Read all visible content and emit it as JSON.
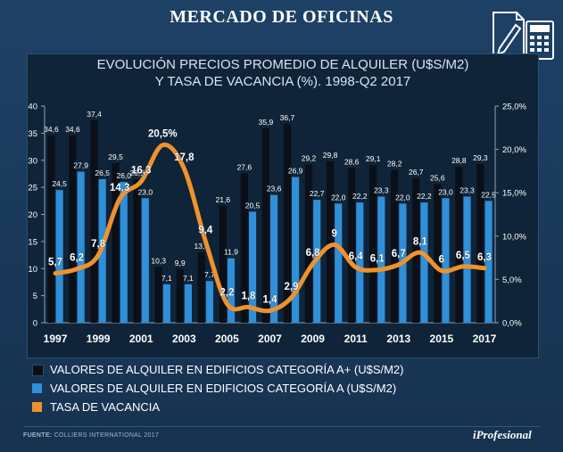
{
  "header": {
    "title": "MERCADO DE OFICINAS"
  },
  "chart_data": {
    "type": "bar",
    "title_line1": "EVOLUCIÓN PRECIOS PROMEDIO DE ALQUILER (U$S/M2)",
    "title_line2": "Y TASA DE VACANCIA (%). 1998-Q2 2017",
    "categories": [
      "1997",
      "1998",
      "1999",
      "2000",
      "2001",
      "2002",
      "2003",
      "2004",
      "2005",
      "2006",
      "2007",
      "2008",
      "2009",
      "2010",
      "2011",
      "2012",
      "2013",
      "2014",
      "2015",
      "2016",
      "2017"
    ],
    "x_tick_labels": [
      "1997",
      "1999",
      "2001",
      "2003",
      "2005",
      "2007",
      "2009",
      "2011",
      "2013",
      "2015",
      "2017"
    ],
    "y_left_ticks": [
      "0",
      "5",
      "10",
      "15",
      "20",
      "25",
      "30",
      "35",
      "40"
    ],
    "y_left_lim": [
      0,
      40
    ],
    "y_right_ticks": [
      "0,0%",
      "5,0%",
      "10,0%",
      "15,0%",
      "20,0%",
      "25,0%"
    ],
    "y_right_lim": [
      0,
      25
    ],
    "series": [
      {
        "name": "VALORES DE ALQUILER EN EDIFICIOS CATEGORÍA A+ (U$S/M2)",
        "axis": "left",
        "color": "#0a0f18",
        "values": [
          34.6,
          34.6,
          37.4,
          29.5,
          26.5,
          10.3,
          9.9,
          13.0,
          21.6,
          27.6,
          35.9,
          36.7,
          29.2,
          29.8,
          28.6,
          29.1,
          28.2,
          26.7,
          25.6,
          28.8,
          29.3
        ],
        "labels": [
          "34,6",
          "34,6",
          "37,4",
          "29,5",
          "26,5",
          "10,3",
          "9,9",
          "13,0",
          "21,6",
          "27,6",
          "35,9",
          "36,7",
          "29,2",
          "29,8",
          "28,6",
          "29,1",
          "28,2",
          "26,7",
          "25,6",
          "28,8",
          "29,3"
        ]
      },
      {
        "name": "VALORES DE ALQUILER EN EDIFICIOS CATEGORÍA A (U$S/M2)",
        "axis": "left",
        "color": "#2f8fd8",
        "values": [
          24.5,
          27.9,
          26.5,
          26.0,
          23.0,
          7.1,
          7.1,
          7.7,
          11.9,
          20.5,
          23.6,
          26.9,
          22.7,
          22.0,
          22.2,
          23.3,
          22.0,
          22.2,
          23.0,
          23.3,
          22.5
        ],
        "labels": [
          "24,5",
          "27,9",
          "26,5",
          "26,0",
          "23,0",
          "7,1",
          "7,1",
          "7,7",
          "11,9",
          "20,5",
          "23,6",
          "26,9",
          "22,7",
          "22,0",
          "22,2",
          "23,3",
          "22,0",
          "22,2",
          "23,0",
          "23,3",
          "22,5"
        ]
      },
      {
        "name": "TASA DE VACANCIA",
        "axis": "right",
        "color": "#f0922c",
        "type": "line",
        "values": [
          5.7,
          6.2,
          7.8,
          14.3,
          16.3,
          20.5,
          17.8,
          9.4,
          2.2,
          1.8,
          1.4,
          2.9,
          6.8,
          9.0,
          6.4,
          6.1,
          6.7,
          8.1,
          6.0,
          6.5,
          6.3
        ],
        "labels": [
          "5,7",
          "6,2",
          "7,8",
          "14,3",
          "16,3",
          "20,5%",
          "17,8",
          "9,4",
          "2,2",
          "1,8",
          "1,4",
          "2,9",
          "6,8",
          "9",
          "6,4",
          "6,1",
          "6,7",
          "8,1",
          "6",
          "6,5",
          "6,3"
        ]
      }
    ]
  },
  "footer": {
    "source_label": "FUENTE:",
    "source_text": "COLLIERS INTERNATIONAL 2017",
    "brand": "iProfesional"
  }
}
